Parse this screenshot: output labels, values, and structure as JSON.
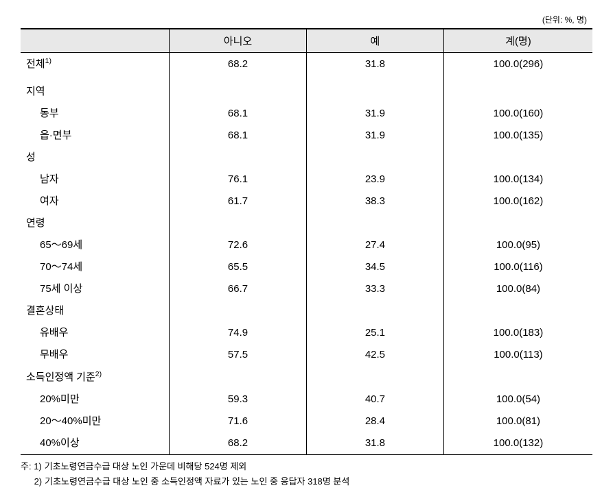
{
  "unit_label": "(단위: %, 명)",
  "columns": {
    "label": "",
    "no": "아니오",
    "yes": "예",
    "total": "계(명)"
  },
  "rows": [
    {
      "type": "data",
      "label": "전체",
      "sup": "1)",
      "indent": false,
      "no": "68.2",
      "yes": "31.8",
      "total": "100.0(296)"
    },
    {
      "type": "spacer"
    },
    {
      "type": "section",
      "label": "지역"
    },
    {
      "type": "data",
      "label": "동부",
      "indent": true,
      "no": "68.1",
      "yes": "31.9",
      "total": "100.0(160)"
    },
    {
      "type": "data",
      "label": "읍·면부",
      "indent": true,
      "no": "68.1",
      "yes": "31.9",
      "total": "100.0(135)"
    },
    {
      "type": "section",
      "label": "성"
    },
    {
      "type": "data",
      "label": "남자",
      "indent": true,
      "no": "76.1",
      "yes": "23.9",
      "total": "100.0(134)"
    },
    {
      "type": "data",
      "label": "여자",
      "indent": true,
      "no": "61.7",
      "yes": "38.3",
      "total": "100.0(162)"
    },
    {
      "type": "section",
      "label": "연령"
    },
    {
      "type": "data",
      "label": "65～69세",
      "indent": true,
      "no": "72.6",
      "yes": "27.4",
      "total": "100.0(95)"
    },
    {
      "type": "data",
      "label": "70～74세",
      "indent": true,
      "no": "65.5",
      "yes": "34.5",
      "total": "100.0(116)"
    },
    {
      "type": "data",
      "label": "75세 이상",
      "indent": true,
      "no": "66.7",
      "yes": "33.3",
      "total": "100.0(84)"
    },
    {
      "type": "section",
      "label": "결혼상태"
    },
    {
      "type": "data",
      "label": "유배우",
      "indent": true,
      "no": "74.9",
      "yes": "25.1",
      "total": "100.0(183)"
    },
    {
      "type": "data",
      "label": "무배우",
      "indent": true,
      "no": "57.5",
      "yes": "42.5",
      "total": "100.0(113)"
    },
    {
      "type": "section",
      "label": "소득인정액 기준",
      "sup": "2)"
    },
    {
      "type": "data",
      "label": "20%미만",
      "indent": true,
      "no": "59.3",
      "yes": "40.7",
      "total": "100.0(54)"
    },
    {
      "type": "data",
      "label": "20～40%미만",
      "indent": true,
      "no": "71.6",
      "yes": "28.4",
      "total": "100.0(81)"
    },
    {
      "type": "data",
      "label": "40%이상",
      "indent": true,
      "no": "68.2",
      "yes": "31.8",
      "total": "100.0(132)",
      "last": true
    }
  ],
  "footnotes": {
    "prefix": "주: ",
    "items": [
      {
        "num": "1)",
        "text": "기초노령연금수급 대상 노인 가운데 비해당 524명 제외"
      },
      {
        "num": "2)",
        "text": "기초노령연금수급 대상 노인 중 소득인정액 자료가 있는 노인 중 응답자 318명 분석"
      }
    ]
  },
  "styling": {
    "header_bg": "#e8e8e8",
    "border_color": "#000000",
    "background": "#ffffff",
    "font_size_body": 15,
    "font_size_unit": 12,
    "font_size_footnote": 13
  }
}
